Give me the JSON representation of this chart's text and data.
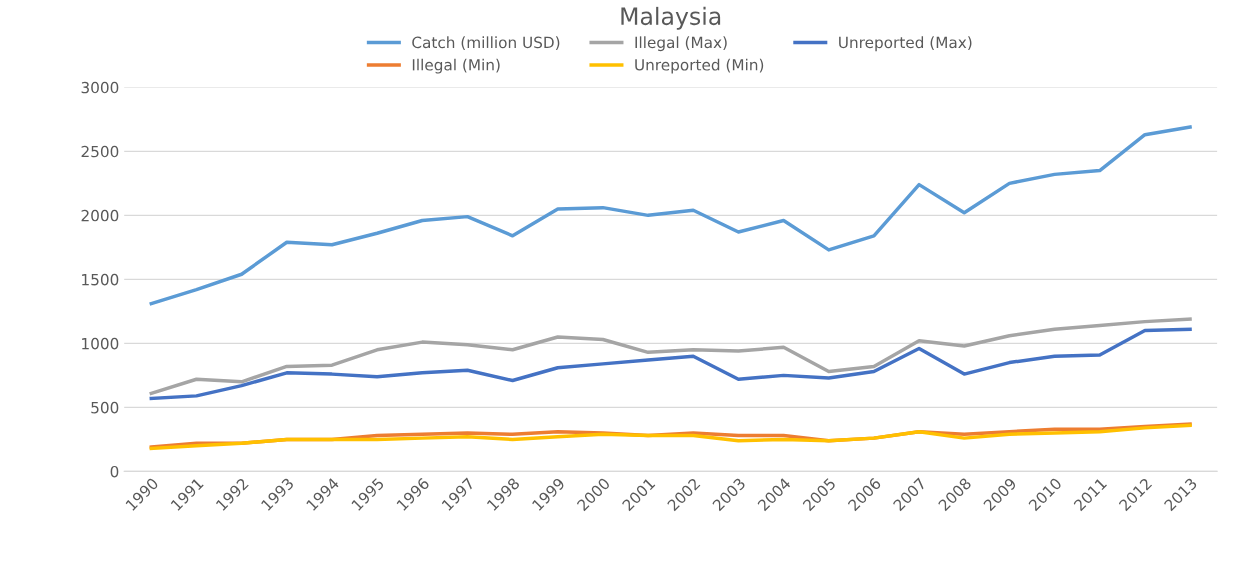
{
  "chart_data": {
    "type": "line",
    "title": "Malaysia",
    "categories": [
      "1990",
      "1991",
      "1992",
      "1993",
      "1994",
      "1995",
      "1996",
      "1997",
      "1998",
      "1999",
      "2000",
      "2001",
      "2002",
      "2003",
      "2004",
      "2005",
      "2006",
      "2007",
      "2008",
      "2009",
      "2010",
      "2011",
      "2012",
      "2013"
    ],
    "series": [
      {
        "name": "Catch (million USD)",
        "color": "#5b9bd5",
        "values": [
          1310,
          1420,
          1540,
          1790,
          1770,
          1860,
          1960,
          1990,
          1840,
          2050,
          2060,
          2000,
          2040,
          1870,
          1960,
          1730,
          1840,
          2240,
          2020,
          2250,
          2320,
          2350,
          2630,
          2690
        ]
      },
      {
        "name": "Illegal (Min)",
        "color": "#ed7d31",
        "values": [
          190,
          220,
          220,
          250,
          250,
          280,
          290,
          300,
          290,
          310,
          300,
          280,
          300,
          280,
          280,
          240,
          260,
          310,
          290,
          310,
          330,
          330,
          350,
          370
        ]
      },
      {
        "name": "Illegal (Max)",
        "color": "#a5a5a5",
        "values": [
          610,
          720,
          700,
          820,
          830,
          950,
          1010,
          990,
          950,
          1050,
          1030,
          930,
          950,
          940,
          970,
          780,
          820,
          1020,
          980,
          1060,
          1110,
          1140,
          1170,
          1190
        ]
      },
      {
        "name": "Unreported (Min)",
        "color": "#ffc000",
        "values": [
          180,
          200,
          220,
          250,
          250,
          250,
          260,
          270,
          250,
          270,
          290,
          280,
          280,
          240,
          250,
          240,
          260,
          310,
          260,
          290,
          300,
          310,
          340,
          360
        ]
      },
      {
        "name": "Unreported (Max)",
        "color": "#4472c4",
        "values": [
          570,
          590,
          670,
          770,
          760,
          740,
          770,
          790,
          710,
          810,
          840,
          870,
          900,
          720,
          750,
          730,
          780,
          960,
          760,
          850,
          900,
          910,
          1100,
          1110
        ]
      }
    ],
    "ylim": [
      0,
      3000
    ],
    "yticks": [
      0,
      500,
      1000,
      1500,
      2000,
      2500,
      3000
    ],
    "grid": "y",
    "legend": "top",
    "marker": "none",
    "line_style": "solid"
  }
}
